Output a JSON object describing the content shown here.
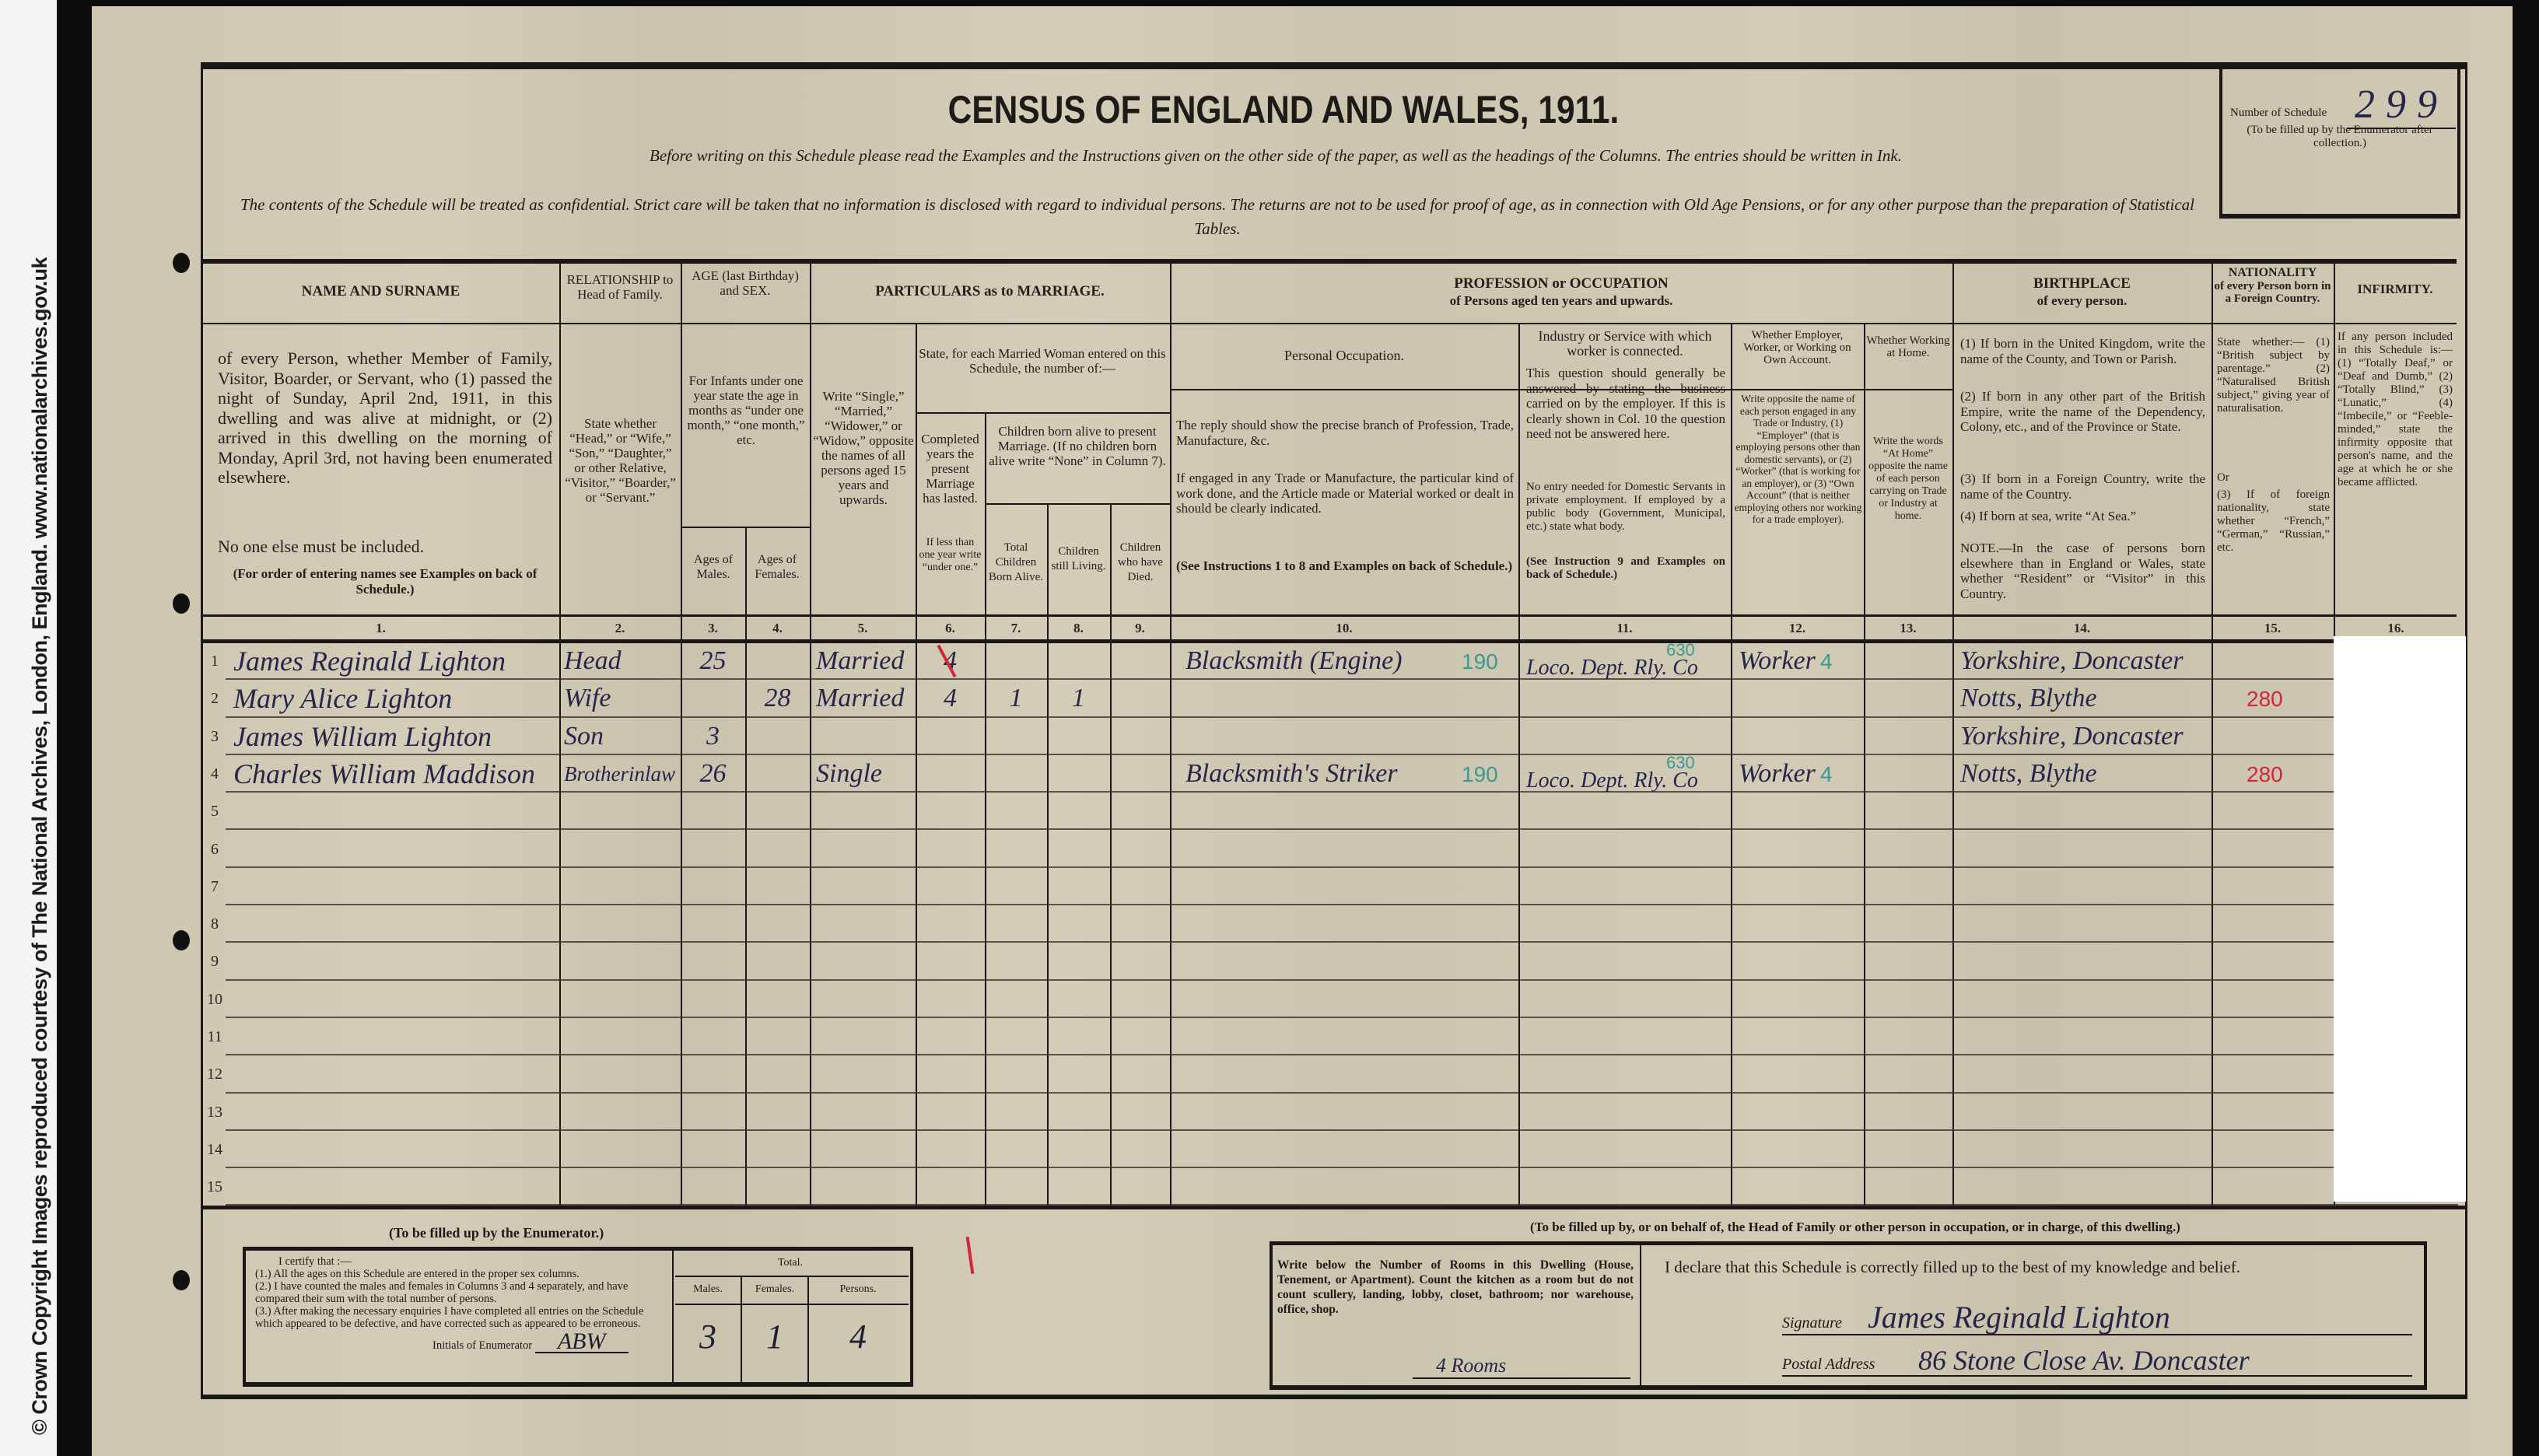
{
  "watermark": "© Crown Copyright Images reproduced courtesy of The National Archives, London, England. www.nationalarchives.gov.uk",
  "title": "CENSUS OF ENGLAND AND WALES, 1911.",
  "instruction_line": "Before writing on this Schedule please read the Examples and the Instructions given on the other side of the paper, as well as the headings of the Columns. The entries should be written in Ink.",
  "confidential_line": "The contents of the Schedule will be treated as confidential. Strict care will be taken that no information is disclosed with regard to individual persons. The returns are not to be used for proof of age, as in connection with Old Age Pensions, or for any other purpose than the preparation of Statistical Tables.",
  "schedule_box": {
    "label": "Number of Schedule",
    "value": "299",
    "note": "(To be filled up by the Enumerator after collection.)"
  },
  "headers": {
    "name": {
      "title": "NAME AND SURNAME",
      "body": "of every Person, whether Member of Family, Visitor, Boarder, or Servant, who (1) passed the night of Sunday, April 2nd, 1911, in this dwelling and was alive at midnight, or (2) arrived in this dwelling on the morning of Monday, April 3rd, not having been enumerated elsewhere.",
      "note": "No one else must be included.",
      "order": "(For order of entering names see Examples on back of Schedule.)"
    },
    "relationship": {
      "title": "RELATIONSHIP to Head of Family.",
      "body": "State whether “Head,” or “Wife,” “Son,” “Daughter,” or other Relative, “Visitor,” “Boarder,” or “Servant.”"
    },
    "age": {
      "title": "AGE (last Birthday) and SEX.",
      "body": "For Infants under one year state the age in months as “under one month,” “one month,” etc.",
      "males": "Ages of Males.",
      "females": "Ages of Females."
    },
    "marriage": {
      "title": "PARTICULARS as to MARRIAGE.",
      "col5": "Write “Single,” “Married,” “Widower,” or “Widow,” opposite the names of all persons aged 15 years and upwards.",
      "married_woman": "State, for each Married Woman entered on this Schedule, the number of:—",
      "col6": "Completed years the present Marriage has lasted.",
      "col6_note": "If less than one year write “under one.”",
      "children": "Children born alive to present Marriage. (If no children born alive write “None” in Column 7).",
      "col7": "Total Children Born Alive.",
      "col8": "Children still Living.",
      "col9": "Children who have Died."
    },
    "occupation": {
      "title": "PROFESSION or OCCUPATION",
      "subtitle": "of Persons aged ten years and upwards.",
      "col10": "Personal Occupation.",
      "col10_body1": "The reply should show the precise branch of Profession, Trade, Manufacture, &c.",
      "col10_body2": "If engaged in any Trade or Manufacture, the particular kind of work done, and the Article made or Material worked or dealt in should be clearly indicated.",
      "col10_body3": "(See Instructions 1 to 8 and Examples on back of Schedule.)",
      "col11": "Industry or Service with which worker is connected.",
      "col11_body1": "This question should generally be answered by stating the business carried on by the employer. If this is clearly shown in Col. 10 the question need not be answered here.",
      "col11_body2": "No entry needed for Domestic Servants in private employment. If employed by a public body (Government, Municipal, etc.) state what body.",
      "col11_body3": "(See Instruction 9 and Examples on back of Schedule.)",
      "col12": "Whether Employer, Worker, or Working on Own Account.",
      "col12_body": "Write opposite the name of each person engaged in any Trade or Industry, (1) “Employer” (that is employing persons other than domestic servants), or (2) “Worker” (that is working for an employer), or (3) “Own Account” (that is neither employing others nor working for a trade employer).",
      "col13": "Whether Working at Home.",
      "col13_body": "Write the words “At Home” opposite the name of each person carrying on Trade or Industry at home."
    },
    "birthplace": {
      "title": "BIRTHPLACE",
      "subtitle": "of every person.",
      "body1": "(1) If born in the United Kingdom, write the name of the County, and Town or Parish.",
      "body2": "(2) If born in any other part of the British Empire, write the name of the Dependency, Colony, etc., and of the Province or State.",
      "body3": "(3) If born in a Foreign Country, write the name of the Country.",
      "body4": "(4) If born at sea, write “At Sea.”",
      "note": "NOTE.—In the case of persons born elsewhere than in England or Wales, state whether “Resident” or “Visitor” in this Country."
    },
    "nationality": {
      "title": "NATIONALITY",
      "subtitle": "of every Person born in a Foreign Country.",
      "body1": "State whether:— (1) “British subject by parentage.” (2) “Naturalised British subject,” giving year of naturalisation.",
      "or": "Or",
      "body2": "(3) If of foreign nationality, state whether “French,” “German,” “Russian,” etc."
    },
    "infirmity": {
      "title": "INFIRMITY.",
      "body": "If any person included in this Schedule is:— (1) “Totally Deaf,” or “Deaf and Dumb,” (2) “Totally Blind,” (3) “Lunatic,” (4) “Imbecile,” or “Feeble-minded,” state the infirmity opposite that person's name, and the age at which he or she became afflicted."
    }
  },
  "column_numbers": [
    "1.",
    "2.",
    "3.",
    "4.",
    "5.",
    "6.",
    "7.",
    "8.",
    "9.",
    "10.",
    "11.",
    "12.",
    "13.",
    "14.",
    "15.",
    "16."
  ],
  "row_numbers": [
    "1",
    "2",
    "3",
    "4",
    "5",
    "6",
    "7",
    "8",
    "9",
    "10",
    "11",
    "12",
    "13",
    "14",
    "15"
  ],
  "rows": [
    {
      "name": "James Reginald Lighton",
      "relationship": "Head",
      "age_male": "25",
      "age_female": "",
      "marital": "Married",
      "years_married": "4",
      "children_total": "",
      "children_living": "",
      "children_died": "",
      "occupation": "Blacksmith (Engine)",
      "occupation_code": "190",
      "industry": "Loco. Dept. Rly. Co",
      "industry_code": "630",
      "employment": "Worker",
      "employment_code": "4",
      "at_home": "",
      "birthplace": "Yorkshire, Doncaster",
      "birthplace_code": "",
      "infirmity": ""
    },
    {
      "name": "Mary Alice Lighton",
      "relationship": "Wife",
      "age_male": "",
      "age_female": "28",
      "marital": "Married",
      "years_married": "4",
      "children_total": "1",
      "children_living": "1",
      "children_died": "",
      "occupation": "",
      "occupation_code": "",
      "industry": "",
      "industry_code": "",
      "employment": "",
      "employment_code": "",
      "at_home": "",
      "birthplace": "Notts, Blythe",
      "birthplace_code": "280",
      "infirmity": ""
    },
    {
      "name": "James William Lighton",
      "relationship": "Son",
      "age_male": "3",
      "age_female": "",
      "marital": "",
      "years_married": "",
      "children_total": "",
      "children_living": "",
      "children_died": "",
      "occupation": "",
      "occupation_code": "",
      "industry": "",
      "industry_code": "",
      "employment": "",
      "employment_code": "",
      "at_home": "",
      "birthplace": "Yorkshire, Doncaster",
      "birthplace_code": "",
      "infirmity": ""
    },
    {
      "name": "Charles William Maddison",
      "relationship": "Brotherinlaw",
      "age_male": "26",
      "age_female": "",
      "marital": "Single",
      "years_married": "",
      "children_total": "",
      "children_living": "",
      "children_died": "",
      "occupation": "Blacksmith's Striker",
      "occupation_code": "190",
      "industry": "Loco. Dept. Rly. Co",
      "industry_code": "630",
      "employment": "Worker",
      "employment_code": "4",
      "at_home": "",
      "birthplace": "Notts, Blythe",
      "birthplace_code": "280",
      "infirmity": ""
    }
  ],
  "enumerator": {
    "heading": "(To be filled up by the Enumerator.)",
    "certify": "I certify that :—",
    "c1": "(1.) All the ages on this Schedule are entered in the proper sex columns.",
    "c2": "(2.) I have counted the males and females in Columns 3 and 4 separately, and have compared their sum with the total number of persons.",
    "c3": "(3.) After making the necessary enquiries I have completed all entries on the Schedule which appeared to be defective, and have corrected such as appeared to be erroneous.",
    "initials_label": "Initials of Enumerator",
    "initials": "ABW",
    "total_label": "Total.",
    "males_label": "Males.",
    "females_label": "Females.",
    "persons_label": "Persons.",
    "males": "3",
    "females": "1",
    "persons": "4"
  },
  "head_of_family": {
    "heading": "(To be filled up by, or on behalf of, the Head of Family or other person in occupation, or in charge, of this dwelling.)",
    "rooms_instruction": "Write below the Number of Rooms in this Dwelling (House, Tenement, or Apartment). Count the kitchen as a room but do not count scullery, landing, lobby, closet, bathroom; nor warehouse, office, shop.",
    "rooms": "4 Rooms",
    "declaration": "I declare that this Schedule is correctly filled up to the best of my knowledge and belief.",
    "signature_label": "Signature",
    "signature": "James Reginald Lighton",
    "address_label": "Postal Address",
    "address": "86 Stone Close Av. Doncaster"
  },
  "colors": {
    "paper": "#cfc9b3",
    "ink": "#26264a",
    "code_teal": "#3a9a92",
    "code_red": "#d0283a"
  }
}
